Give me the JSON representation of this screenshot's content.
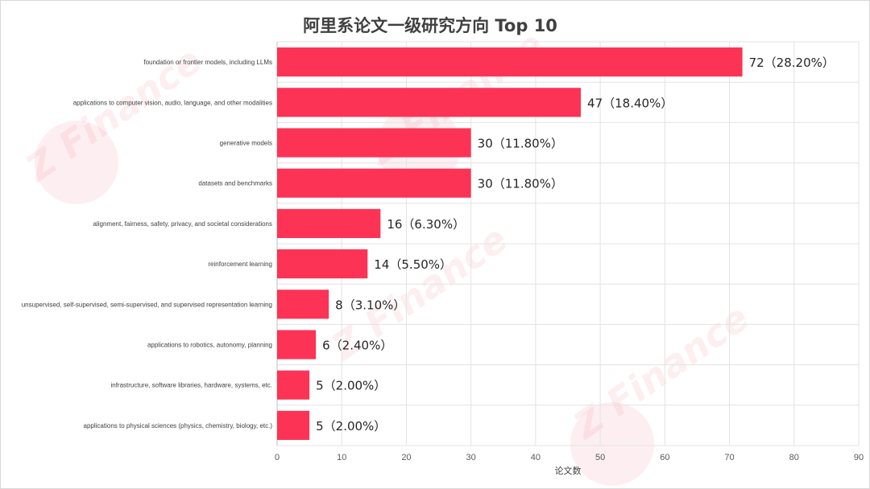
{
  "watermark": "Z Finance",
  "chart_data": {
    "type": "bar",
    "orientation": "horizontal",
    "title": "阿里系论文一级研究方向 Top 10",
    "xlabel": "论文数",
    "ylabel": "",
    "xlim": [
      0,
      90
    ],
    "xticks": [
      0,
      10,
      20,
      30,
      40,
      50,
      60,
      70,
      80,
      90
    ],
    "grid": true,
    "bar_color": "#fc3355",
    "categories": [
      "foundation or frontier models, including LLMs",
      "applications to computer vision, audio, language, and other modalities",
      "generative models",
      "datasets and benchmarks",
      "alignment, fairness, safety, privacy, and societal considerations",
      "reinforcement learning",
      "unsupervised, self-supervised, semi-supervised, and supervised representation learning",
      "applications to robotics, autonomy, planning",
      "infrastructure, software libraries, hardware, systems, etc.",
      "applications to physical sciences (physics, chemistry, biology, etc.)"
    ],
    "values": [
      72,
      47,
      30,
      30,
      16,
      14,
      8,
      6,
      5,
      5
    ],
    "data_labels": [
      "72（28.20%）",
      "47（18.40%）",
      "30（11.80%）",
      "30（11.80%）",
      "16（6.30%）",
      "14（5.50%）",
      "8（3.10%）",
      "6（2.40%）",
      "5（2.00%）",
      "5（2.00%）"
    ]
  }
}
